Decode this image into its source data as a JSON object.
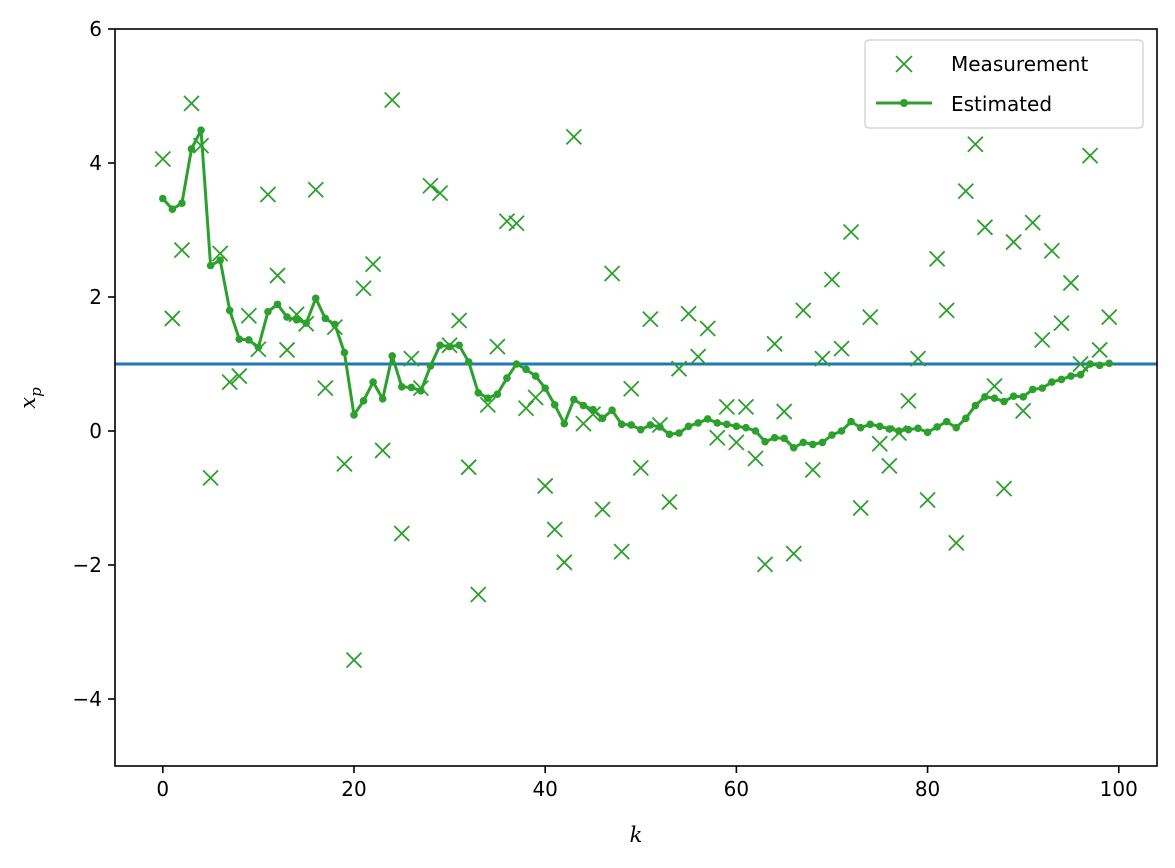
{
  "chart_data": {
    "type": "line",
    "xlabel": "k",
    "ylabel_main": "x",
    "ylabel_sub": "p",
    "xlim": [
      -5,
      104
    ],
    "ylim": [
      -5,
      6
    ],
    "xticks": [
      0,
      20,
      40,
      60,
      80,
      100
    ],
    "xtick_labels": [
      "0",
      "20",
      "40",
      "60",
      "80",
      "100"
    ],
    "yticks": [
      -4,
      -2,
      0,
      2,
      4,
      6
    ],
    "ytick_labels": [
      "−4",
      "−2",
      "0",
      "2",
      "4",
      "6"
    ],
    "grid": false,
    "legend_position": "top-right",
    "reference_line": {
      "y": 1.0,
      "color": "#1f77b4"
    },
    "series": [
      {
        "name": "Measurement",
        "marker": "x",
        "color": "#2ca02c",
        "x": [
          0,
          1,
          2,
          3,
          4,
          5,
          6,
          7,
          8,
          9,
          10,
          11,
          12,
          13,
          14,
          15,
          16,
          17,
          18,
          19,
          20,
          21,
          22,
          23,
          24,
          25,
          26,
          27,
          28,
          29,
          30,
          31,
          32,
          33,
          34,
          35,
          36,
          37,
          38,
          39,
          40,
          41,
          42,
          43,
          44,
          45,
          46,
          47,
          48,
          49,
          50,
          51,
          52,
          53,
          54,
          55,
          56,
          57,
          58,
          59,
          60,
          61,
          62,
          63,
          64,
          65,
          66,
          67,
          68,
          69,
          70,
          71,
          72,
          73,
          74,
          75,
          76,
          77,
          78,
          79,
          80,
          81,
          82,
          83,
          84,
          85,
          86,
          87,
          88,
          89,
          90,
          91,
          92,
          93,
          94,
          95,
          96,
          97,
          98,
          99
        ],
        "y": [
          4.06,
          1.68,
          2.7,
          4.89,
          4.26,
          -0.7,
          2.65,
          0.73,
          0.82,
          1.72,
          1.22,
          3.53,
          2.32,
          1.21,
          1.74,
          1.6,
          3.6,
          0.64,
          1.55,
          -0.49,
          -3.42,
          2.13,
          2.49,
          -0.29,
          4.94,
          -1.53,
          1.08,
          0.64,
          3.66,
          3.55,
          1.28,
          1.65,
          -0.54,
          -2.44,
          0.39,
          1.26,
          3.13,
          3.1,
          0.34,
          0.5,
          -0.82,
          -1.47,
          -1.96,
          4.39,
          0.11,
          0.25,
          -1.17,
          2.35,
          -1.8,
          0.63,
          -0.55,
          1.67,
          0.09,
          -1.06,
          0.93,
          1.75,
          1.11,
          1.53,
          -0.1,
          0.36,
          -0.17,
          0.36,
          -0.41,
          -1.99,
          1.3,
          0.29,
          -1.83,
          1.8,
          -0.58,
          1.08,
          2.26,
          1.23,
          2.97,
          -1.15,
          1.7,
          -0.19,
          -0.52,
          -0.03,
          0.45,
          1.08,
          -1.03,
          2.57,
          1.8,
          -1.67,
          3.58,
          4.28,
          3.04,
          0.67,
          -0.86,
          2.82,
          0.3,
          3.11,
          1.36,
          2.69,
          1.61,
          2.21,
          1.0,
          4.11,
          1.21,
          1.7
        ]
      },
      {
        "name": "Estimated",
        "marker": "o",
        "color": "#2ca02c",
        "x": [
          0,
          1,
          2,
          3,
          4,
          5,
          6,
          7,
          8,
          9,
          10,
          11,
          12,
          13,
          14,
          15,
          16,
          17,
          18,
          19,
          20,
          21,
          22,
          23,
          24,
          25,
          26,
          27,
          28,
          29,
          30,
          31,
          32,
          33,
          34,
          35,
          36,
          37,
          38,
          39,
          40,
          41,
          42,
          43,
          44,
          45,
          46,
          47,
          48,
          49,
          50,
          51,
          52,
          53,
          54,
          55,
          56,
          57,
          58,
          59,
          60,
          61,
          62,
          63,
          64,
          65,
          66,
          67,
          68,
          69,
          70,
          71,
          72,
          73,
          74,
          75,
          76,
          77,
          78,
          79,
          80,
          81,
          82,
          83,
          84,
          85,
          86,
          87,
          88,
          89,
          90,
          91,
          92,
          93,
          94,
          95,
          96,
          97,
          98,
          99
        ],
        "y": [
          3.47,
          3.31,
          3.4,
          4.21,
          4.49,
          2.47,
          2.55,
          1.8,
          1.37,
          1.36,
          1.25,
          1.78,
          1.89,
          1.7,
          1.66,
          1.61,
          1.98,
          1.68,
          1.59,
          1.17,
          0.24,
          0.45,
          0.73,
          0.48,
          1.12,
          0.66,
          0.65,
          0.6,
          0.97,
          1.28,
          1.26,
          1.28,
          1.03,
          0.57,
          0.49,
          0.55,
          0.79,
          1.0,
          0.92,
          0.82,
          0.64,
          0.39,
          0.11,
          0.47,
          0.38,
          0.32,
          0.19,
          0.31,
          0.1,
          0.09,
          0.02,
          0.09,
          0.06,
          -0.05,
          -0.03,
          0.07,
          0.12,
          0.18,
          0.12,
          0.1,
          0.07,
          0.05,
          0.0,
          -0.16,
          -0.1,
          -0.11,
          -0.25,
          -0.17,
          -0.2,
          -0.17,
          -0.06,
          0.0,
          0.14,
          0.05,
          0.1,
          0.07,
          0.03,
          0.0,
          0.02,
          0.04,
          -0.02,
          0.06,
          0.14,
          0.05,
          0.19,
          0.38,
          0.51,
          0.49,
          0.44,
          0.52,
          0.51,
          0.62,
          0.64,
          0.73,
          0.77,
          0.82,
          0.84,
          1.0,
          0.98,
          1.01
        ]
      }
    ]
  }
}
